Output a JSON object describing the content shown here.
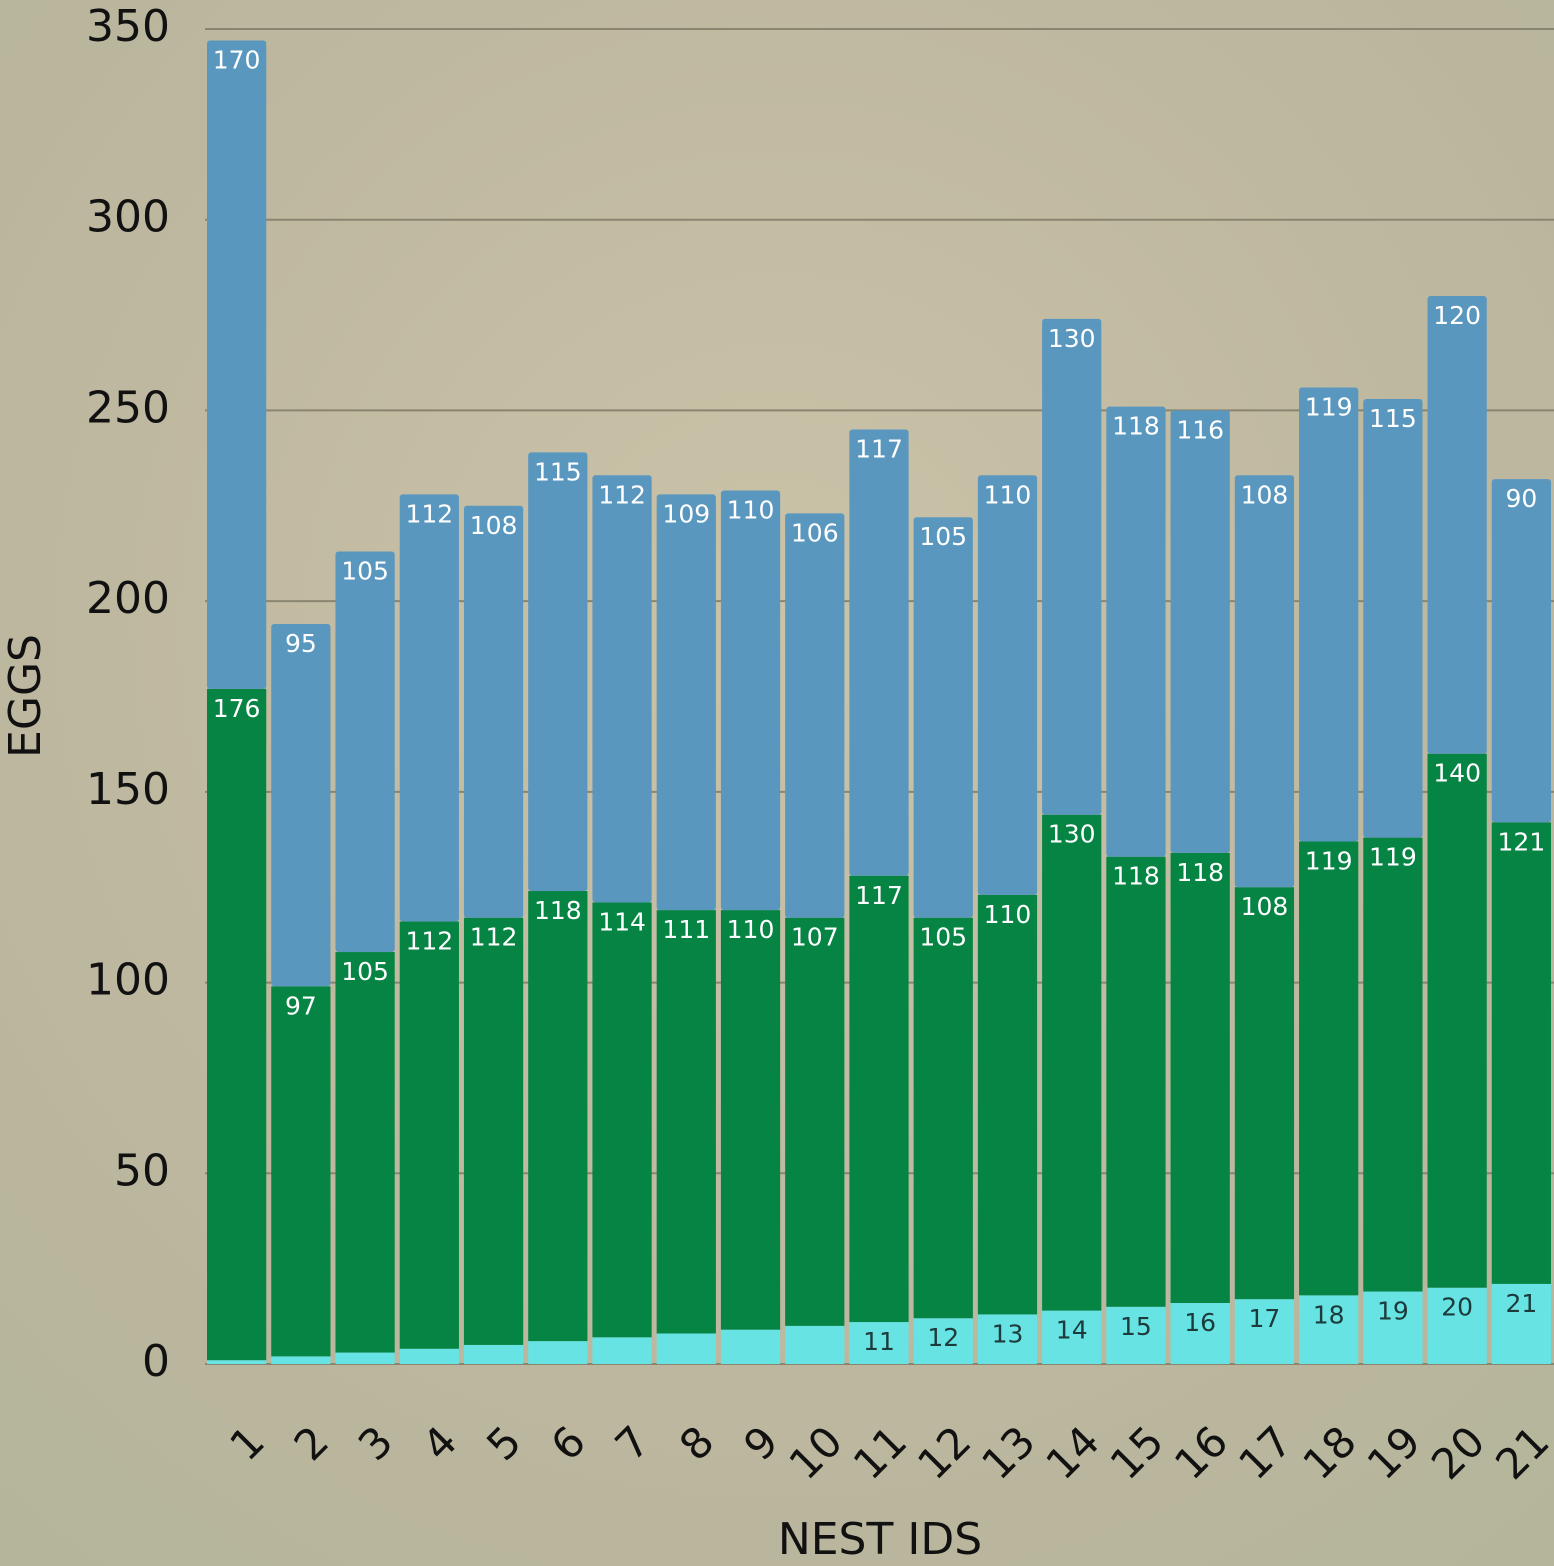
{
  "chart_data": {
    "type": "stacked_bar",
    "xlabel": "NEST IDS",
    "ylabel": "EGGS",
    "categories": [
      "1",
      "2",
      "3",
      "4",
      "5",
      "6",
      "7",
      "8",
      "9",
      "10",
      "11",
      "12",
      "13",
      "14",
      "15",
      "16",
      "17",
      "18",
      "19",
      "20",
      "21"
    ],
    "series": [
      {
        "color": "#67e3e4",
        "values": [
          1,
          2,
          3,
          4,
          5,
          6,
          7,
          8,
          9,
          10,
          11,
          12,
          13,
          14,
          15,
          16,
          17,
          18,
          19,
          20,
          21
        ]
      },
      {
        "color": "#058444",
        "values": [
          176,
          97,
          105,
          112,
          112,
          118,
          114,
          111,
          110,
          107,
          117,
          105,
          110,
          130,
          118,
          118,
          108,
          119,
          119,
          140,
          121
        ]
      },
      {
        "color": "#5a97bf",
        "values": [
          170,
          95,
          105,
          112,
          108,
          115,
          112,
          109,
          110,
          106,
          117,
          105,
          110,
          130,
          118,
          116,
          108,
          119,
          115,
          120,
          90
        ]
      }
    ],
    "ylim": [
      0,
      350
    ],
    "yticks": [
      0,
      50,
      100,
      150,
      200,
      250,
      300,
      350
    ],
    "grid": true
  }
}
